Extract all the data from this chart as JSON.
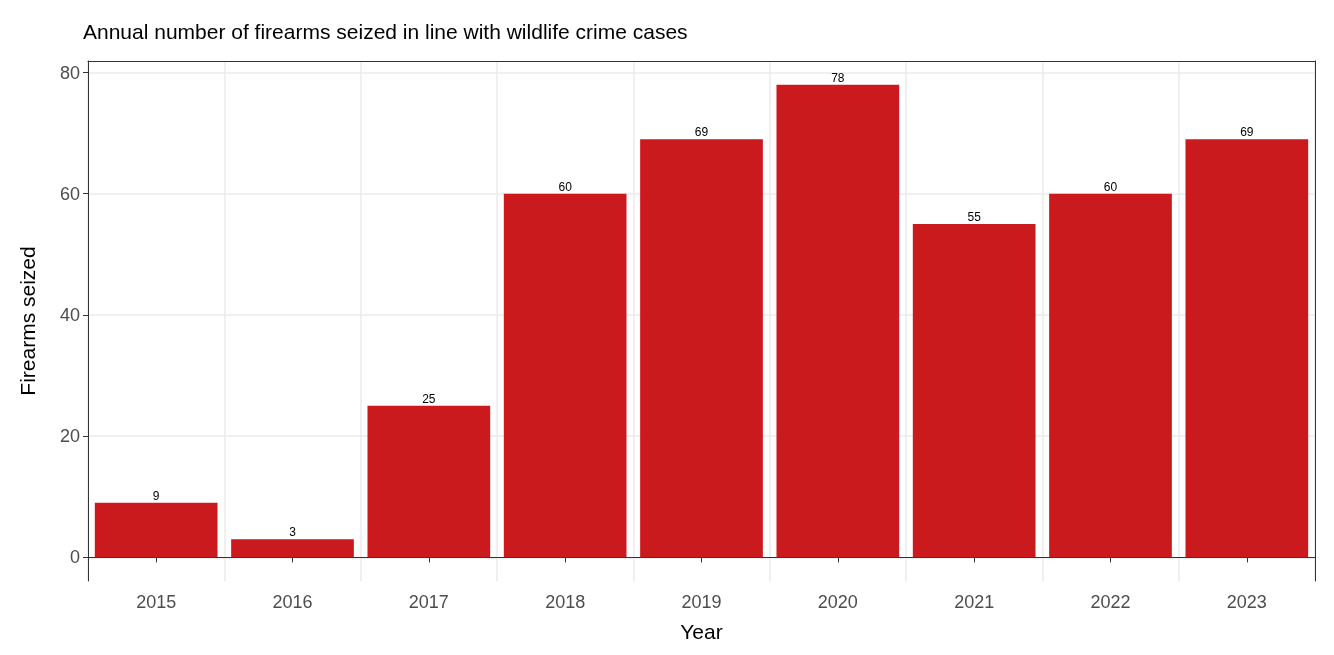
{
  "chart_data": {
    "type": "bar",
    "title": "Annual number of firearms seized in line with wildlife crime cases",
    "xlabel": "Year",
    "ylabel": "Firearms seized",
    "categories": [
      "2015",
      "2016",
      "2017",
      "2018",
      "2019",
      "2020",
      "2021",
      "2022",
      "2023"
    ],
    "values": [
      9,
      3,
      25,
      60,
      69,
      78,
      55,
      60,
      69
    ],
    "color": "#cb1a1e",
    "ylim": [
      -3.9,
      81.9
    ],
    "yticks": [
      0,
      20,
      40,
      60,
      80
    ],
    "grid": true,
    "data_labels": true
  }
}
